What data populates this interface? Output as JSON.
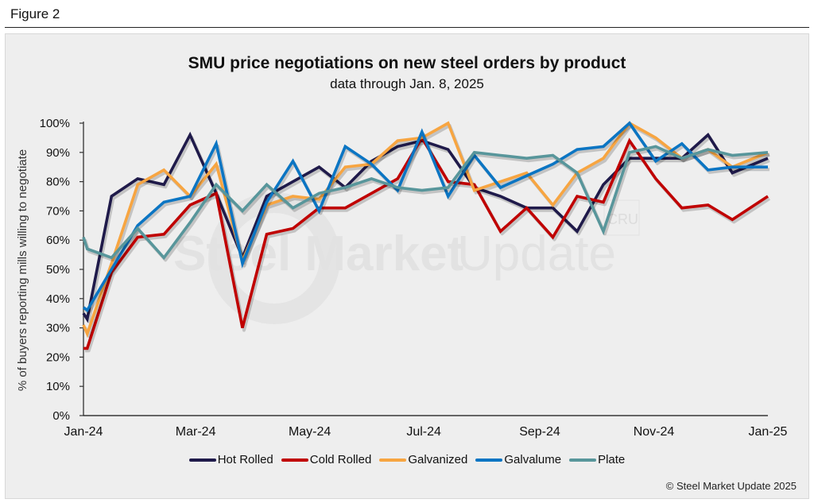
{
  "figure_label": "Figure 2",
  "credit": "© Steel Market Update 2025",
  "watermark": {
    "bold": "Steel Market",
    "light": "Update",
    "logo": "CRU"
  },
  "chart_data": {
    "type": "line",
    "title": "SMU price negotiations on new steel orders by product",
    "subtitle": "data through Jan. 8, 2025",
    "xlabel": "",
    "ylabel": "% of buyers reporting mills willing to negotiate",
    "ylim": [
      0,
      100
    ],
    "yticks": [
      "0%",
      "10%",
      "20%",
      "30%",
      "40%",
      "50%",
      "60%",
      "70%",
      "80%",
      "90%",
      "100%"
    ],
    "xticks": [
      "Jan-24",
      "Mar-24",
      "May-24",
      "Jul-24",
      "Sep-24",
      "Nov-24",
      "Jan-25"
    ],
    "xtick_days": [
      0,
      60,
      121,
      182,
      244,
      305,
      366
    ],
    "x_days": [
      0,
      2,
      15,
      29,
      43,
      57,
      71,
      85,
      98,
      112,
      126,
      140,
      154,
      168,
      181,
      195,
      209,
      223,
      237,
      251,
      264,
      278,
      292,
      306,
      320,
      334,
      347,
      366
    ],
    "grid": false,
    "legend_position": "bottom",
    "series": [
      {
        "name": "Hot Rolled",
        "color": "#1f1a4a",
        "values": [
          35,
          33,
          75,
          81,
          79,
          96,
          76,
          54,
          75,
          80,
          85,
          78,
          87,
          92,
          94,
          91,
          78,
          75,
          71,
          71,
          63,
          79,
          88,
          88,
          88,
          96,
          83,
          88
        ]
      },
      {
        "name": "Cold Rolled",
        "color": "#c00000",
        "values": [
          23,
          23,
          49,
          61,
          62,
          72,
          76,
          30,
          62,
          64,
          71,
          71,
          76,
          81,
          95,
          80,
          79,
          63,
          71,
          61,
          75,
          73,
          94,
          81,
          71,
          72,
          67,
          75
        ]
      },
      {
        "name": "Galvanized",
        "color": "#f7a541",
        "values": [
          31,
          28,
          52,
          79,
          84,
          75,
          86,
          53,
          72,
          75,
          74,
          85,
          86,
          94,
          95,
          100,
          77,
          80,
          83,
          72,
          83,
          88,
          100,
          95,
          88,
          91,
          85,
          90
        ]
      },
      {
        "name": "Galvalume",
        "color": "#0b75c3",
        "values": [
          37,
          36,
          50,
          65,
          73,
          75,
          93,
          52,
          73,
          87,
          70,
          92,
          86,
          77,
          97,
          75,
          89,
          78,
          82,
          86,
          91,
          92,
          100,
          87,
          93,
          84,
          85,
          85
        ]
      },
      {
        "name": "Plate",
        "color": "#58969b",
        "values": [
          61,
          57,
          54,
          64,
          54,
          66,
          79,
          70,
          79,
          71,
          76,
          78,
          81,
          78,
          77,
          78,
          90,
          89,
          88,
          89,
          83,
          63,
          90,
          92,
          88,
          91,
          89,
          90
        ]
      }
    ]
  }
}
